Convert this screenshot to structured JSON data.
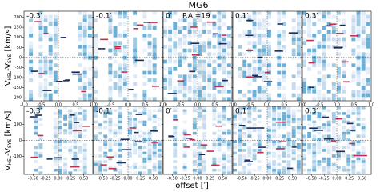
{
  "chart_data": {
    "type": "pv-panels",
    "title": "MG6",
    "ylabel_parts": [
      "V",
      "HEL",
      "-V",
      "SYS",
      " [km/s]"
    ],
    "xlabel": "offset [′]",
    "rows": [
      {
        "xlim": [
          -1,
          1
        ],
        "xticks": [
          {
            "value": -1,
            "label": "-1.0"
          },
          {
            "value": -0.5,
            "label": "-0.5"
          },
          {
            "value": 0,
            "label": "0.0"
          },
          {
            "value": 0.5,
            "label": "0.5"
          },
          {
            "value": 1,
            "label": "1.0"
          }
        ],
        "ylim": [
          230,
          -215
        ],
        "yticks": [
          -200,
          -150,
          -100,
          -50,
          0,
          50,
          100,
          150,
          200
        ],
        "panels": [
          {
            "label": "-0.3′"
          },
          {
            "label": "-0.1′"
          },
          {
            "label": "0′",
            "note": "P.A.=19"
          },
          {
            "label": "0.1′"
          },
          {
            "label": "0.3′"
          }
        ]
      },
      {
        "xlim": [
          -0.68,
          0.68
        ],
        "xticks": [
          {
            "value": -0.5,
            "label": "-0.50"
          },
          {
            "value": -0.25,
            "label": "-0.25"
          },
          {
            "value": 0,
            "label": "0.00"
          },
          {
            "value": 0.25,
            "label": "0.25"
          },
          {
            "value": 0.5,
            "label": "0.50"
          }
        ],
        "ylim": [
          210,
          -210
        ],
        "yticks": [
          -100,
          0,
          100
        ],
        "panels": [
          {
            "label": "-0.3′"
          },
          {
            "label": "-0.1′"
          },
          {
            "label": "0′"
          },
          {
            "label": "0.1′"
          },
          {
            "label": "0.3′"
          }
        ]
      }
    ]
  }
}
